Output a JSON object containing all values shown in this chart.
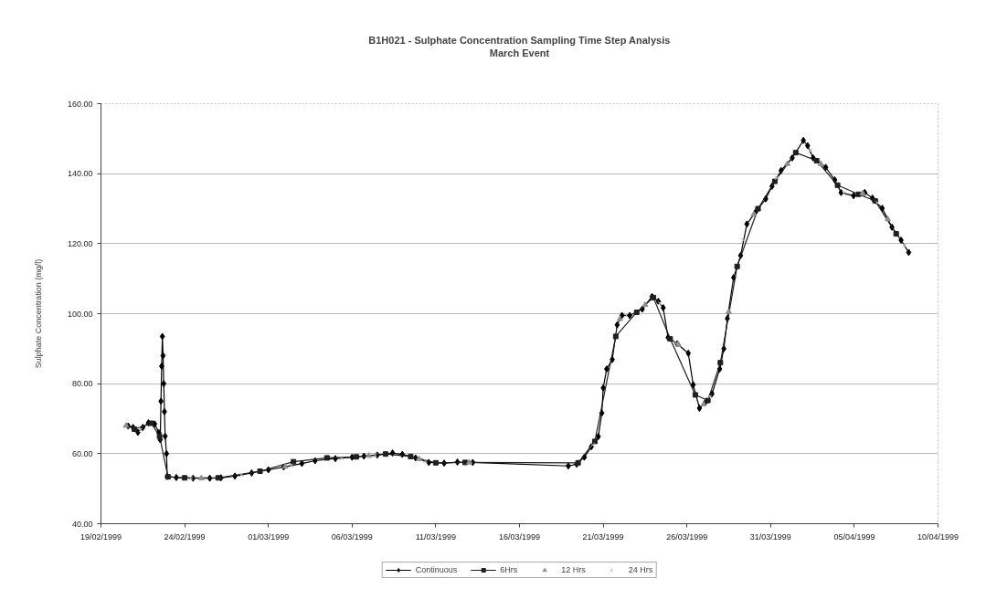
{
  "chart_data": {
    "type": "line",
    "title": "B1H021 - Sulphate Concentration Sampling Time Step Analysis",
    "subtitle": "March Event",
    "ylabel": "Sulphate Concentration (mg/l)",
    "xlim": [
      "1999-02-19",
      "1999-04-10"
    ],
    "xticks": [
      {
        "value": "1999-02-19",
        "label": "19/02/1999"
      },
      {
        "value": "1999-02-24",
        "label": "24/02/1999"
      },
      {
        "value": "1999-03-01",
        "label": "01/03/1999"
      },
      {
        "value": "1999-03-06",
        "label": "06/03/1999"
      },
      {
        "value": "1999-03-11",
        "label": "11/03/1999"
      },
      {
        "value": "1999-03-16",
        "label": "16/03/1999"
      },
      {
        "value": "1999-03-21",
        "label": "21/03/1999"
      },
      {
        "value": "1999-03-26",
        "label": "26/03/1999"
      },
      {
        "value": "1999-03-31",
        "label": "31/03/1999"
      },
      {
        "value": "1999-04-05",
        "label": "05/04/1999"
      },
      {
        "value": "1999-04-10",
        "label": "10/04/1999"
      }
    ],
    "ylim": [
      40,
      160
    ],
    "yticks": [
      {
        "value": 40,
        "label": "40.00"
      },
      {
        "value": 60,
        "label": "60.00"
      },
      {
        "value": 80,
        "label": "80.00"
      },
      {
        "value": 100,
        "label": "100.00"
      },
      {
        "value": 120,
        "label": "120.00"
      },
      {
        "value": 140,
        "label": "140.00"
      },
      {
        "value": 160,
        "label": "160.00"
      }
    ],
    "grid": "y",
    "legend": "bottom",
    "series": [
      {
        "name": "Continuous",
        "type": "line",
        "marker": "diamond",
        "color": "#000000",
        "x": [
          "1999-02-20T15:00",
          "1999-02-20T22:00",
          "1999-02-21T05:00",
          "1999-02-21T12:00",
          "1999-02-21T20:00",
          "1999-02-22T05:00",
          "1999-02-22T11:00",
          "1999-02-22T13:00",
          "1999-02-22T14:00",
          "1999-02-22T15:00",
          "1999-02-22T16:00",
          "1999-02-22T17:00",
          "1999-02-22T18:00",
          "1999-02-22T19:00",
          "1999-02-22T20:00",
          "1999-02-22T22:00",
          "1999-02-22T23:00",
          "1999-02-23T12:00",
          "1999-02-24T12:00",
          "1999-02-25T12:00",
          "1999-02-26T04:00",
          "1999-02-27T00:00",
          "1999-02-28T00:00",
          "1999-03-01T00:00",
          "1999-03-01T22:00",
          "1999-03-03T00:00",
          "1999-03-03T19:00",
          "1999-03-05T00:00",
          "1999-03-06T00:00",
          "1999-03-06T17:00",
          "1999-03-07T12:00",
          "1999-03-08T10:00",
          "1999-03-09T00:00",
          "1999-03-09T19:00",
          "1999-03-10T14:00",
          "1999-03-11T12:00",
          "1999-03-12T07:00",
          "1999-03-13T05:00",
          "1999-03-18T22:00",
          "1999-03-19T10:00",
          "1999-03-19T21:00",
          "1999-03-20T07:00",
          "1999-03-20T17:00",
          "1999-03-20T22:00",
          "1999-03-21T00:00",
          "1999-03-21T05:00",
          "1999-03-21T13:00",
          "1999-03-21T20:00",
          "1999-03-22T03:00",
          "1999-03-22T14:00",
          "1999-03-23T08:00",
          "1999-03-23T22:00",
          "1999-03-24T07:00",
          "1999-03-24T14:00",
          "1999-03-24T21:00",
          "1999-03-25T10:00",
          "1999-03-26T02:00",
          "1999-03-26T09:00",
          "1999-03-26T18:00",
          "1999-03-27T02:00",
          "1999-03-27T12:00",
          "1999-03-27T23:00",
          "1999-03-28T05:00",
          "1999-03-28T10:00",
          "1999-03-28T19:00",
          "1999-03-29T05:00",
          "1999-03-29T14:00",
          "1999-03-30T03:00",
          "1999-03-30T17:00",
          "1999-03-31T02:00",
          "1999-03-31T15:00",
          "1999-04-01T07:00",
          "1999-04-01T23:00",
          "1999-04-02T05:00",
          "1999-04-02T13:00",
          "1999-04-03T07:00",
          "1999-04-03T20:00",
          "1999-04-04T05:00",
          "1999-04-04T23:00",
          "1999-04-05T15:00",
          "1999-04-06T02:00",
          "1999-04-06T16:00",
          "1999-04-07T06:00",
          "1999-04-07T19:00",
          "1999-04-08T06:00"
        ],
        "values": [
          67.9,
          67.5,
          66.1,
          67.5,
          68.8,
          68.5,
          66.0,
          64.0,
          75.0,
          85.0,
          93.5,
          88.0,
          80.0,
          72.0,
          65.0,
          60.0,
          53.5,
          53.2,
          53.0,
          53.0,
          53.1,
          53.6,
          54.5,
          55.4,
          56.2,
          57.2,
          58.0,
          58.6,
          59.0,
          59.3,
          59.6,
          60.2,
          59.8,
          58.8,
          57.5,
          57.3,
          57.6,
          57.5,
          56.5,
          57.0,
          59.0,
          62.0,
          64.9,
          71.6,
          78.8,
          84.2,
          86.9,
          96.8,
          99.5,
          99.5,
          101.3,
          104.9,
          103.5,
          101.7,
          93.2,
          91.4,
          88.7,
          79.7,
          73.0,
          74.5,
          77.1,
          84.2,
          90.0,
          98.6,
          110.3,
          116.6,
          125.6,
          129.2,
          132.8,
          136.4,
          140.9,
          144.5,
          149.5,
          148.0,
          144.5,
          141.8,
          138.2,
          134.6,
          133.7,
          134.6,
          133.0,
          130.1,
          124.7,
          121.0,
          117.5
        ]
      },
      {
        "name": "6Hrs",
        "type": "line",
        "marker": "square",
        "color": "#1f1f1f",
        "x": [
          "1999-02-21T00:00",
          "1999-02-22T00:00",
          "1999-02-22T12:00",
          "1999-02-23T00:00",
          "1999-02-24T00:00",
          "1999-02-26T00:00",
          "1999-02-28T12:00",
          "1999-03-02T12:00",
          "1999-03-04T12:00",
          "1999-03-06T06:00",
          "1999-03-08T00:00",
          "1999-03-09T12:00",
          "1999-03-11T00:00",
          "1999-03-12T18:00",
          "1999-03-19T12:00",
          "1999-03-20T12:00",
          "1999-03-21T18:00",
          "1999-03-23T00:00",
          "1999-03-24T00:00",
          "1999-03-25T00:00",
          "1999-03-26T12:00",
          "1999-03-27T06:00",
          "1999-03-28T00:00",
          "1999-03-29T00:00",
          "1999-03-30T06:00",
          "1999-03-31T06:00",
          "1999-04-01T12:00",
          "1999-04-02T18:00",
          "1999-04-04T00:00",
          "1999-04-05T06:00",
          "1999-04-06T06:00",
          "1999-04-07T12:00"
        ],
        "values": [
          67.0,
          68.7,
          65.0,
          53.4,
          53.1,
          53.1,
          55.0,
          57.7,
          58.8,
          59.1,
          59.9,
          59.2,
          57.4,
          57.5,
          57.4,
          63.5,
          93.5,
          100.4,
          104.6,
          92.8,
          76.8,
          75.2,
          86.0,
          113.5,
          130.0,
          137.8,
          146.0,
          143.7,
          136.7,
          134.1,
          132.2,
          122.8
        ]
      },
      {
        "name": "12 Hrs",
        "type": "scatter",
        "marker": "triangle",
        "color": "#8f8f8f",
        "x": [
          "1999-02-20T12:00",
          "1999-02-25T00:00",
          "1999-03-02T00:00",
          "1999-03-07T00:00",
          "1999-03-10T00:00",
          "1999-03-13T00:00",
          "1999-03-22T00:00",
          "1999-03-23T12:00",
          "1999-03-25T12:00",
          "1999-03-27T00:00",
          "1999-03-28T12:00",
          "1999-03-30T00:00",
          "1999-04-01T00:00",
          "1999-04-03T00:00",
          "1999-04-05T12:00",
          "1999-04-07T00:00"
        ],
        "values": [
          68.0,
          53.0,
          56.3,
          59.4,
          58.5,
          57.5,
          98.5,
          102.5,
          91.1,
          74.1,
          100.5,
          128.4,
          142.8,
          142.8,
          134.4,
          127.0
        ]
      },
      {
        "name": "24 Hrs",
        "type": "scatter",
        "marker": "cross",
        "color": "#b3b3b3",
        "x": [
          "1999-02-21T09:00",
          "1999-02-24T09:00",
          "1999-02-27T09:00",
          "1999-03-02T09:00",
          "1999-03-05T09:00",
          "1999-03-07T09:00",
          "1999-03-10T09:00",
          "1999-03-20T09:00",
          "1999-03-22T09:00",
          "1999-03-24T09:00",
          "1999-03-25T09:00",
          "1999-03-27T09:00",
          "1999-03-29T09:00",
          "1999-03-31T09:00",
          "1999-04-02T09:00",
          "1999-04-04T09:00",
          "1999-04-06T09:00",
          "1999-04-08T00:00"
        ],
        "values": [
          66.8,
          53.0,
          53.9,
          56.6,
          58.7,
          59.6,
          57.9,
          62.5,
          99.5,
          103.0,
          91.6,
          76.4,
          121.0,
          138.8,
          146.5,
          134.4,
          131.7,
          119.5
        ]
      }
    ]
  }
}
